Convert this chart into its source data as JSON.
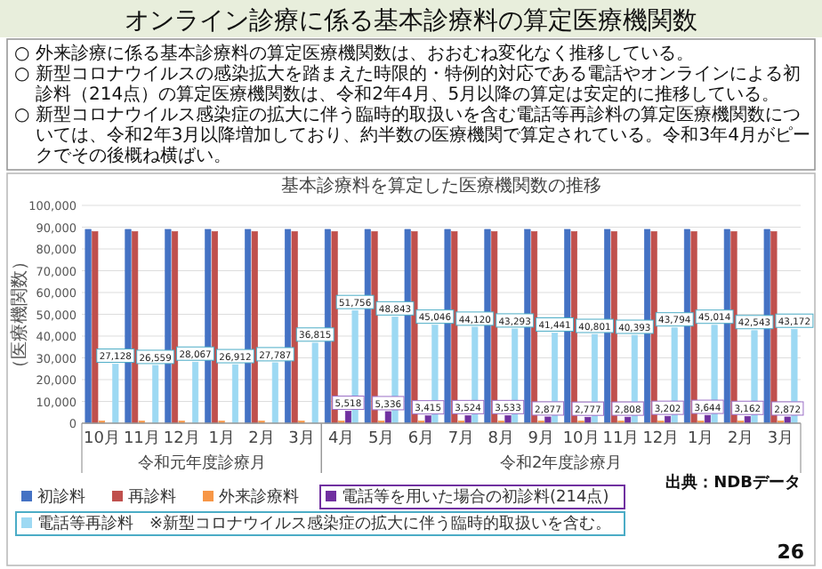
{
  "chart_data": {
    "type": "bar",
    "title": "オンライン診療に係る基本診療料の算定医療機関数",
    "subtitle": "基本診療料を算定した医療機関数の推移",
    "ylabel": "（医療機関数）",
    "categories": [
      "10月",
      "11月",
      "12月",
      "1月",
      "2月",
      "3月",
      "4月",
      "5月",
      "6月",
      "7月",
      "8月",
      "9月",
      "10月",
      "11月",
      "12月",
      "1月",
      "2月",
      "3月"
    ],
    "series": [
      {
        "name": "初診料",
        "color": "#4472c4",
        "values": [
          89000,
          89000,
          89000,
          89000,
          89000,
          89000,
          89000,
          89000,
          89000,
          89000,
          89000,
          89000,
          89000,
          89000,
          89000,
          89000,
          89000,
          89000
        ]
      },
      {
        "name": "再診料",
        "color": "#c0504d",
        "values": [
          88000,
          88000,
          88000,
          88000,
          88000,
          88000,
          88000,
          88000,
          88000,
          88000,
          88000,
          88000,
          88000,
          88000,
          88000,
          88000,
          88000,
          88000
        ]
      },
      {
        "name": "外来診療料",
        "color": "#f79646",
        "values": [
          1000,
          1000,
          1000,
          1000,
          1000,
          1000,
          1000,
          1000,
          1000,
          1000,
          1000,
          1000,
          1000,
          1000,
          1000,
          1000,
          1000,
          1000
        ]
      },
      {
        "name": "電話等を用いた場合の初診料(214点)",
        "color": "#7030a0",
        "values": [
          null,
          null,
          null,
          null,
          null,
          null,
          5518,
          5336,
          3415,
          3524,
          3533,
          2877,
          2777,
          2808,
          3202,
          3644,
          3162,
          2872
        ],
        "value_labels": [
          null,
          null,
          null,
          null,
          null,
          null,
          "5,518",
          "5,336",
          "3,415",
          "3,524",
          "3,533",
          "2,877",
          "2,777",
          "2,808",
          "3,202",
          "3,644",
          "3,162",
          "2,872"
        ]
      },
      {
        "name": "電話等再診料　※新型コロナウイルス感染症の拡大に伴う臨時的取扱いを含む。",
        "color": "#9dd9f3",
        "values": [
          27128,
          26559,
          28067,
          26912,
          27787,
          36815,
          51756,
          48843,
          45046,
          44120,
          43293,
          41441,
          40801,
          40393,
          43794,
          45014,
          42543,
          43172
        ],
        "value_labels": [
          "27,128",
          "26,559",
          "28,067",
          "26,912",
          "27,787",
          "36,815",
          "51,756",
          "48,843",
          "45,046",
          "44,120",
          "43,293",
          "41,441",
          "40,801",
          "40,393",
          "43,794",
          "45,014",
          "42,543",
          "43,172"
        ]
      }
    ],
    "ylim": [
      0,
      100000
    ],
    "yticks": [
      {
        "value": 0,
        "label": "0"
      },
      {
        "value": 10000,
        "label": "10,000"
      },
      {
        "value": 20000,
        "label": "20,000"
      },
      {
        "value": 30000,
        "label": "30,000"
      },
      {
        "value": 40000,
        "label": "40,000"
      },
      {
        "value": 50000,
        "label": "50,000"
      },
      {
        "value": 60000,
        "label": "60,000"
      },
      {
        "value": 70000,
        "label": "70,000"
      },
      {
        "value": 80000,
        "label": "80,000"
      },
      {
        "value": 90000,
        "label": "90,000"
      },
      {
        "value": 100000,
        "label": "100,000"
      }
    ],
    "grid": "y",
    "legend": "bottom",
    "annotations": [
      "○ 外来診療に係る基本診療料の算定医療機関数は、おおむね変化なく推移している。",
      "○ 新型コロナウイルスの感染拡大を踏まえた時限的・特例的対応である電話やオンラインによる初診料（214点）の算定医療機関数は、令和2年4月、5月以降の算定は安定的に推移している。",
      "○ 新型コロナウイルス感染症の拡大に伴う臨時的取扱いを含む電話等再診料の算定医療機関数については、令和2年3月以降増加しており、約半数の医療機関で算定されている。令和3年4月がピークでその後概ね横ばい。",
      "令和元年度診療月",
      "令和2年度診療月",
      "出典：NDBデータ",
      "26"
    ]
  }
}
